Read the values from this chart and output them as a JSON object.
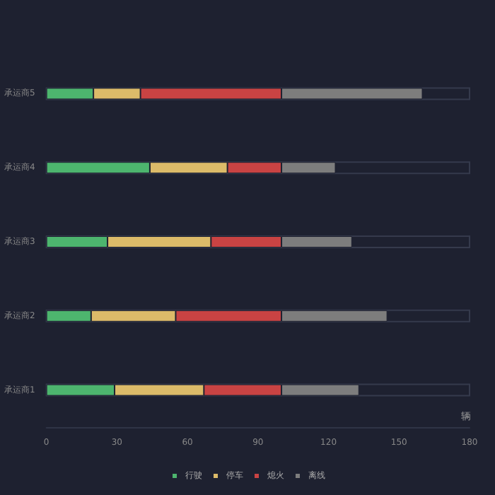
{
  "chart_data": {
    "type": "bar",
    "orientation": "horizontal",
    "stacked": true,
    "categories": [
      "承运商5",
      "承运商4",
      "承运商3",
      "承运商2",
      "承运商1"
    ],
    "xlabel": "辆",
    "xlim": [
      0,
      180
    ],
    "xticks": [
      0,
      30,
      60,
      90,
      120,
      150,
      180
    ],
    "grid": false,
    "legend": "bottom",
    "series": [
      {
        "name": "行驶",
        "color": "#4db56e",
        "values": [
          20,
          44,
          26,
          19,
          29
        ]
      },
      {
        "name": "停车",
        "color": "#dcbb69",
        "values": [
          20,
          33,
          44,
          36,
          38
        ]
      },
      {
        "name": "熄火",
        "color": "#c94343",
        "values": [
          60,
          23,
          30,
          45,
          33
        ]
      },
      {
        "name": "离线",
        "color": "#7d7d7d",
        "values": [
          60,
          23,
          30,
          45,
          33
        ]
      }
    ]
  }
}
